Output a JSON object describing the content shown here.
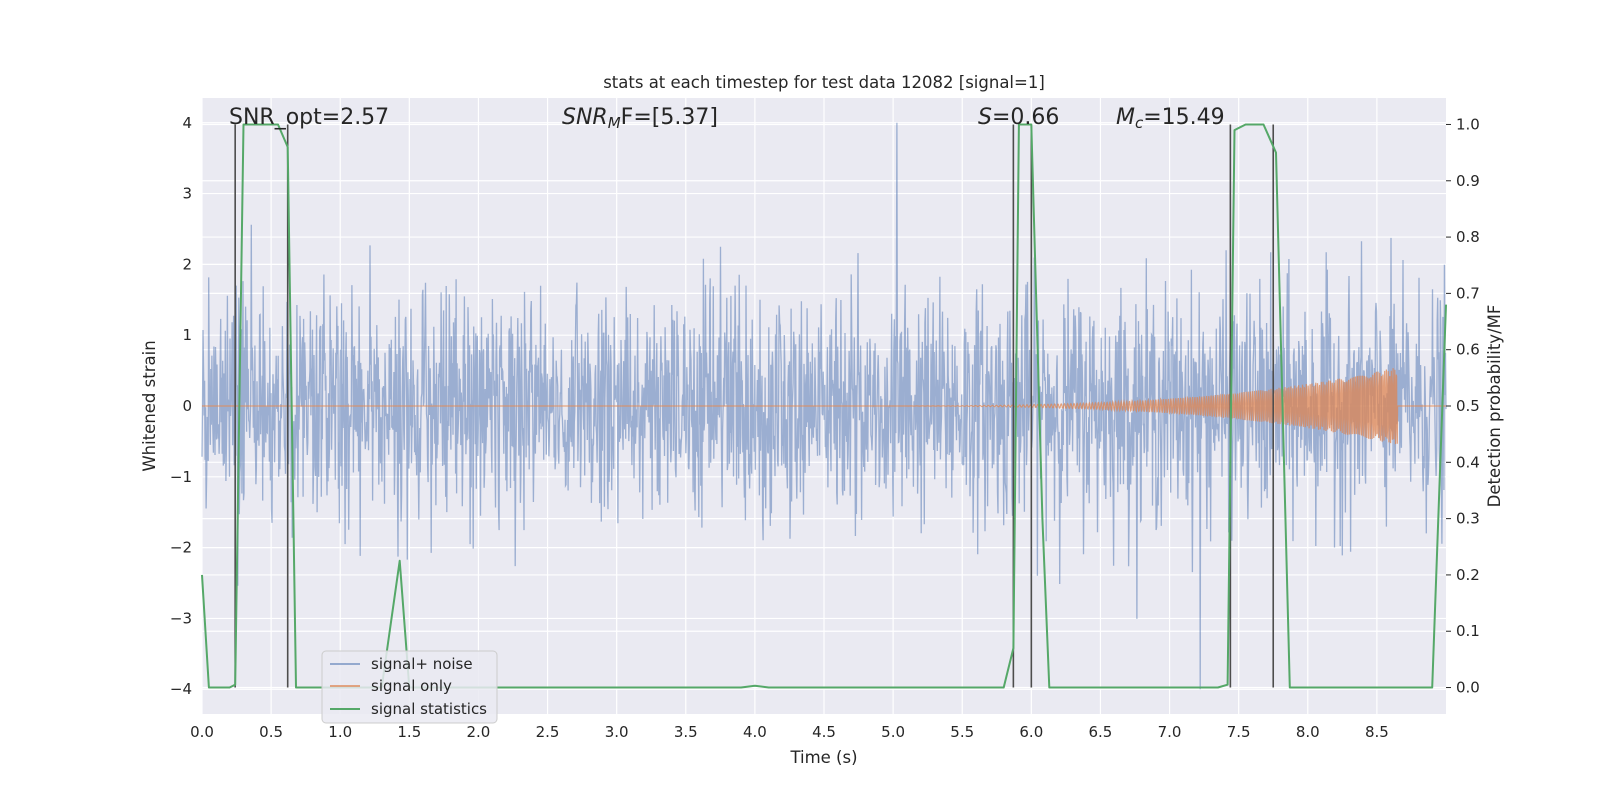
{
  "chart_data": {
    "type": "line",
    "title": "stats at each timestep for test data 12082 [signal=1]",
    "xlabel": "Time (s)",
    "ylabel": "Whitened strain",
    "y2label": "Detection probability/MF",
    "xlim": [
      0.0,
      9.0
    ],
    "ylim": [
      -4.35,
      4.35
    ],
    "y2lim": [
      -0.047,
      1.047
    ],
    "xticks": [
      "0.0",
      "0.5",
      "1.0",
      "1.5",
      "2.0",
      "2.5",
      "3.0",
      "3.5",
      "4.0",
      "4.5",
      "5.0",
      "5.5",
      "6.0",
      "6.5",
      "7.0",
      "7.5",
      "8.0",
      "8.5"
    ],
    "yticks": [
      "4",
      "3",
      "2",
      "1",
      "0",
      "−1",
      "−2",
      "−3",
      "−4"
    ],
    "y2ticks": [
      "1.0",
      "0.9",
      "0.8",
      "0.7",
      "0.6",
      "0.5",
      "0.4",
      "0.3",
      "0.2",
      "0.1",
      "0.0"
    ],
    "grid": true,
    "legend_position": "lower-left",
    "annotations": {
      "snr_opt": "SNR_opt=2.57",
      "snr_mf_main": "SNR",
      "snr_mf_sub": "M",
      "snr_mf_rest": "F=[5.37]",
      "s_main": "S",
      "s_rest": "=0.66",
      "mc_main": "M",
      "mc_sub": "c",
      "mc_rest": "=15.49"
    },
    "series": [
      {
        "name": "signal+ noise",
        "color": "#4c72b0",
        "noise_std": 0.8,
        "peak_positive": 4.0,
        "peak_negative": -4.0
      },
      {
        "name": "signal only",
        "color": "#dd8452",
        "chirp_start": 4.6,
        "chirp_end": 8.65,
        "chirp_peak_amplitude": 0.55
      },
      {
        "name": "signal statistics",
        "color": "#55a868",
        "x": [
          0.0,
          0.05,
          0.2,
          0.24,
          0.3,
          0.55,
          0.62,
          0.68,
          1.3,
          1.43,
          1.5,
          1.6,
          2.0,
          3.9,
          4.0,
          4.1,
          5.8,
          5.87,
          5.91,
          6.0,
          6.08,
          6.13,
          7.35,
          7.42,
          7.47,
          7.55,
          7.68,
          7.77,
          7.87,
          7.92,
          8.9,
          9.0
        ],
        "y": [
          0.2,
          0.0,
          0.0,
          0.005,
          1.0,
          1.0,
          0.96,
          0.0,
          0.0,
          0.225,
          0.0,
          0.0,
          0.0,
          0.0,
          0.003,
          0.0,
          0.0,
          0.07,
          1.0,
          1.0,
          0.3,
          0.0,
          0.0,
          0.005,
          0.99,
          1.0,
          1.0,
          0.95,
          0.0,
          0.0,
          0.0,
          0.68
        ]
      }
    ],
    "vertical_markers": [
      0.24,
      0.62,
      5.87,
      6.0,
      7.44,
      7.75
    ],
    "colors": {
      "axes_bg": "#eaeaf2",
      "grid": "#ffffff",
      "marker": "#4d4d4d"
    }
  }
}
